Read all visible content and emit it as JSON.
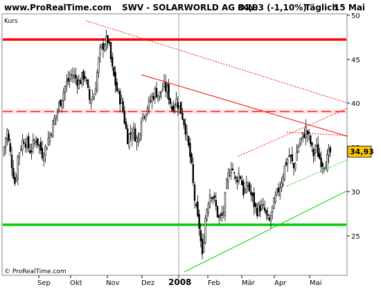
{
  "header": {
    "site": "www.ProRealTime.com",
    "instrument": "SWV - SOLARWORLD AG O.N.",
    "quote": "34,93 (-1,10%)",
    "period": "Täglich",
    "date": "15 Mai"
  },
  "panel_label": "Kurs",
  "footer_copyright": "© ProRealTime.com",
  "colors": {
    "background": "#ffffff",
    "frame": "#808080",
    "candle": "#000000",
    "resistance": "#ff0000",
    "support": "#00cc00",
    "dashed_band": "#ff9999",
    "price_tag": "#ffcc00"
  },
  "chart_data": {
    "type": "candlestick",
    "y_axis": {
      "min": 20.5,
      "max": 51,
      "ticks": [
        25,
        30,
        35,
        40,
        45,
        50
      ]
    },
    "x_axis_months": [
      "Sep",
      "Okt",
      "Nov",
      "Dez",
      "2008",
      "Feb",
      "Mär",
      "Apr",
      "Mai"
    ],
    "last_price_label": "34,93",
    "close_profile": [
      [
        0,
        34.5
      ],
      [
        6,
        37.5
      ],
      [
        12,
        34.0
      ],
      [
        18,
        31.0
      ],
      [
        22,
        34.5
      ],
      [
        30,
        36.5
      ],
      [
        40,
        35.0
      ],
      [
        48,
        36.5
      ],
      [
        58,
        34.5
      ],
      [
        68,
        37.0
      ],
      [
        80,
        40.0
      ],
      [
        90,
        42.5
      ],
      [
        100,
        44.0
      ],
      [
        110,
        43.0
      ],
      [
        118,
        44.0
      ],
      [
        125,
        41.0
      ],
      [
        132,
        41.5
      ],
      [
        140,
        46.5
      ],
      [
        146,
        47.5
      ],
      [
        152,
        48.0
      ],
      [
        158,
        44.5
      ],
      [
        165,
        42.0
      ],
      [
        172,
        40.5
      ],
      [
        180,
        36.5
      ],
      [
        188,
        37.5
      ],
      [
        195,
        36.0
      ],
      [
        200,
        39.0
      ],
      [
        208,
        40.0
      ],
      [
        214,
        41.0
      ],
      [
        220,
        42.0
      ],
      [
        226,
        41.5
      ],
      [
        232,
        42.5
      ],
      [
        238,
        42.0
      ],
      [
        244,
        40.0
      ],
      [
        250,
        41.0
      ],
      [
        258,
        39.5
      ],
      [
        263,
        38.0
      ],
      [
        268,
        35.5
      ],
      [
        272,
        33.5
      ],
      [
        276,
        30.0
      ],
      [
        280,
        27.5
      ],
      [
        284,
        26.0
      ],
      [
        288,
        22.5
      ],
      [
        292,
        27.0
      ],
      [
        296,
        29.0
      ],
      [
        300,
        30.5
      ],
      [
        306,
        29.0
      ],
      [
        312,
        27.0
      ],
      [
        318,
        27.5
      ],
      [
        324,
        31.5
      ],
      [
        330,
        33.5
      ],
      [
        336,
        31.5
      ],
      [
        342,
        32.5
      ],
      [
        348,
        30.0
      ],
      [
        354,
        31.0
      ],
      [
        360,
        29.5
      ],
      [
        366,
        28.0
      ],
      [
        372,
        28.5
      ],
      [
        378,
        28.0
      ],
      [
        384,
        26.5
      ],
      [
        390,
        28.5
      ],
      [
        396,
        30.0
      ],
      [
        402,
        31.5
      ],
      [
        408,
        33.5
      ],
      [
        414,
        34.5
      ],
      [
        420,
        33.0
      ],
      [
        426,
        35.5
      ],
      [
        432,
        36.5
      ],
      [
        438,
        37.5
      ],
      [
        444,
        36.0
      ],
      [
        448,
        34.5
      ],
      [
        452,
        35.5
      ],
      [
        458,
        34.0
      ],
      [
        463,
        33.5
      ],
      [
        468,
        34.0
      ],
      [
        474,
        35.0
      ]
    ],
    "horizontal_levels": [
      {
        "value": 48.0,
        "style": "solid",
        "color": "#ff0000"
      },
      {
        "value": 39.6,
        "style": "dashed",
        "color": "#ff0000"
      },
      {
        "value": 26.4,
        "style": "solid",
        "color": "#00cc00"
      }
    ],
    "trendlines": [
      {
        "from": [
          200,
          43.9
        ],
        "to": [
          498,
          36.7
        ],
        "style": "solid",
        "color": "#ff0000"
      },
      {
        "from": [
          120,
          50.2
        ],
        "to": [
          498,
          40.6
        ],
        "style": "dotted",
        "color": "#ff0000"
      },
      {
        "from": [
          340,
          34.4
        ],
        "to": [
          498,
          40.0
        ],
        "style": "dotted",
        "color": "#ff0000"
      },
      {
        "from": [
          410,
          37.2
        ],
        "to": [
          498,
          36.8
        ],
        "style": "dotted",
        "color": "#ff0000"
      },
      {
        "from": [
          262,
          20.9
        ],
        "to": [
          498,
          30.4
        ],
        "style": "solid",
        "color": "#00cc00"
      },
      {
        "from": [
          410,
          30.9
        ],
        "to": [
          498,
          34.0
        ],
        "style": "dotted",
        "color": "#00cc00"
      }
    ]
  }
}
